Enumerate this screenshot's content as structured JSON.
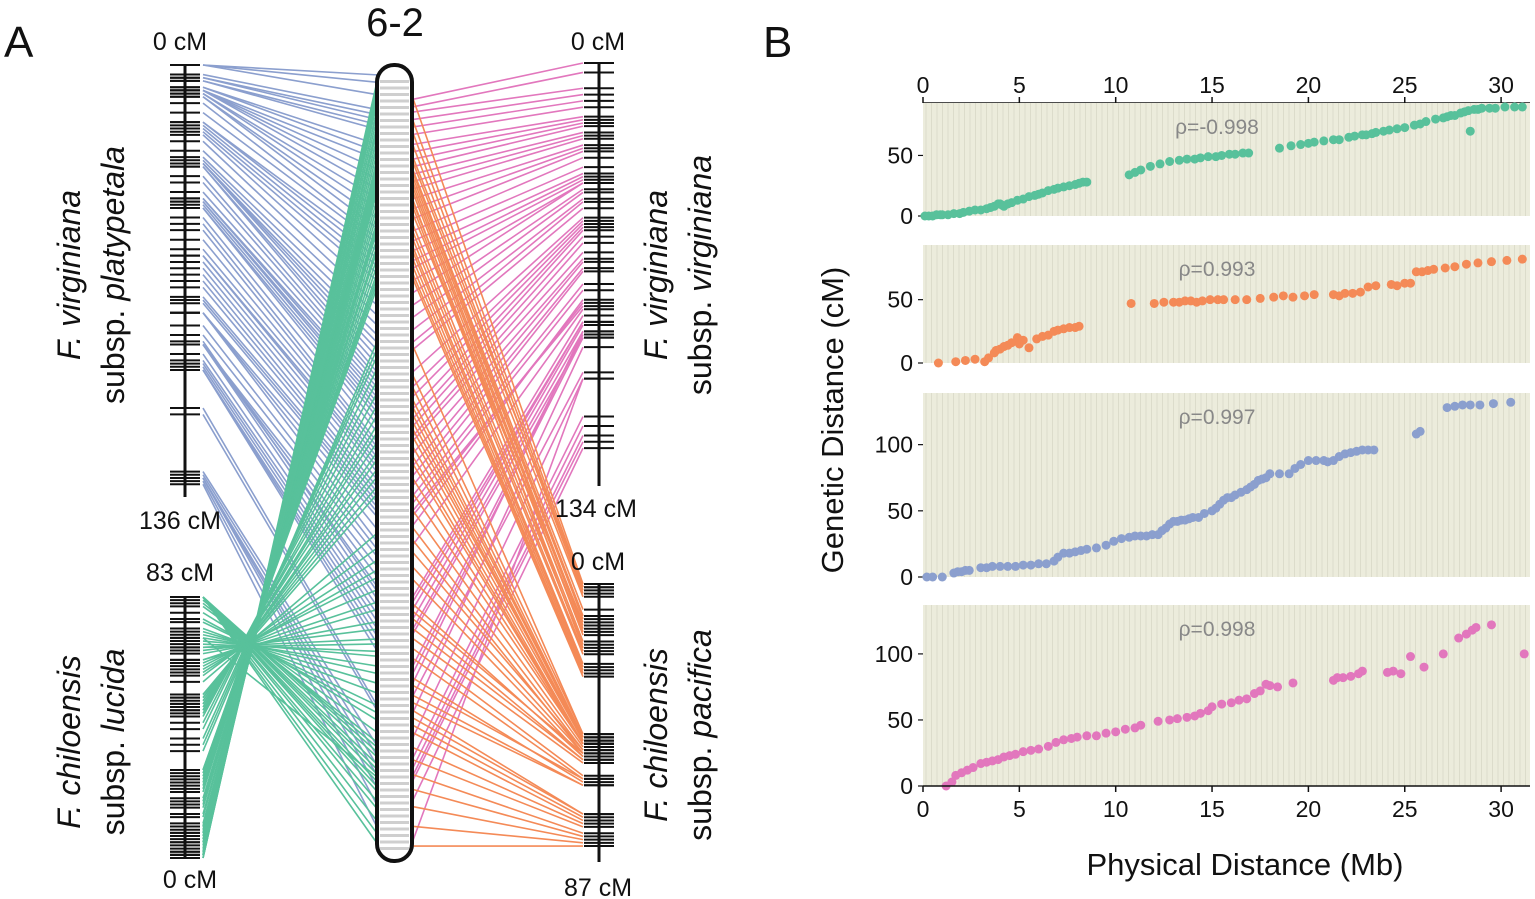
{
  "colors": {
    "platypetala": "#8b9fce",
    "virginiana": "#e277bd",
    "lucida": "#58c19b",
    "pacifica": "#f48a57",
    "panel_bg": "#ececdc",
    "grid": "#dcdccb"
  },
  "panel_a": {
    "letter": "A",
    "chromosome": "6-2",
    "maps": {
      "platypetala": {
        "italic": "F. virginiana",
        "plain": "subsp. ",
        "italic2": "platypetala",
        "top_label": "0 cM",
        "bottom_label": "136 cM"
      },
      "lucida": {
        "italic": "F. chiloensis",
        "plain": "subsp. ",
        "italic2": "lucida",
        "top_label": "83 cM",
        "bottom_label": "0 cM"
      },
      "virginiana": {
        "italic": "F. virginiana",
        "plain": "subsp. ",
        "italic2": "virginiana",
        "top_label": "0 cM",
        "bottom_label": "134 cM"
      },
      "pacifica": {
        "italic": "F. chiloensis",
        "plain": "subsp. ",
        "italic2": "pacifica",
        "top_label": "0 cM",
        "bottom_label": "87 cM"
      }
    }
  },
  "panel_b": {
    "letter": "B"
  },
  "chart_data": {
    "type": "scatter",
    "xlabel": "Physical Distance (Mb)",
    "ylabel": "Genetic Distance (cM)",
    "xlim": [
      0,
      31.5
    ],
    "x_ticks": [
      0,
      5,
      10,
      15,
      20,
      25,
      30
    ],
    "series": [
      {
        "name": "F. chiloensis subsp. lucida",
        "color_key": "lucida",
        "rho": "ρ=-0.998",
        "ylim": [
          0,
          90
        ],
        "y_ticks": [
          0,
          50
        ],
        "x": [
          0.1,
          0.3,
          0.5,
          0.7,
          0.9,
          1.0,
          1.3,
          1.6,
          1.9,
          2.1,
          2.4,
          2.7,
          3.0,
          3.3,
          3.5,
          3.7,
          3.9,
          4.0,
          4.1,
          4.2,
          4.4,
          4.6,
          4.9,
          5.2,
          5.5,
          5.8,
          6.0,
          6.2,
          6.5,
          6.8,
          7.0,
          7.3,
          7.6,
          7.9,
          8.1,
          8.3,
          8.5,
          10.7,
          11.0,
          11.3,
          11.8,
          12.3,
          12.8,
          13.3,
          13.7,
          14.1,
          14.4,
          14.8,
          15.2,
          15.5,
          15.9,
          16.2,
          16.6,
          16.9,
          18.5,
          19.1,
          19.6,
          20.0,
          20.3,
          20.8,
          21.3,
          21.6,
          22.1,
          22.4,
          22.8,
          23.0,
          23.3,
          23.5,
          23.9,
          24.2,
          24.6,
          25.0,
          25.5,
          25.8,
          26.1,
          26.6,
          27.0,
          27.2,
          27.4,
          27.6,
          27.9,
          28.1,
          28.3,
          28.6,
          28.8,
          29.0,
          29.4,
          29.7,
          30.2,
          30.7,
          31.1,
          28.4
        ],
        "y": [
          0,
          0,
          0,
          1,
          1,
          1,
          1,
          2,
          2,
          3,
          4,
          5,
          5,
          6,
          7,
          8,
          10,
          10,
          9,
          8,
          10,
          11,
          13,
          14,
          16,
          17,
          18,
          19,
          21,
          22,
          23,
          24,
          25,
          26,
          27,
          28,
          28,
          34,
          36,
          38,
          41,
          43,
          45,
          46,
          47,
          47,
          48,
          49,
          49,
          50,
          51,
          51,
          52,
          52,
          56,
          58,
          59,
          60,
          61,
          62,
          63,
          63,
          65,
          66,
          67,
          67,
          68,
          69,
          70,
          71,
          72,
          73,
          75,
          76,
          78,
          80,
          81,
          82,
          83,
          83,
          85,
          86,
          87,
          88,
          88,
          89,
          89,
          89,
          90,
          90,
          90,
          70
        ]
      },
      {
        "name": "F. chiloensis subsp. pacifica",
        "color_key": "pacifica",
        "rho": "ρ=0.993",
        "ylim": [
          0,
          90
        ],
        "y_ticks": [
          0,
          50
        ],
        "x": [
          0.8,
          1.7,
          2.2,
          2.7,
          3.2,
          3.4,
          3.7,
          3.8,
          4.0,
          4.2,
          4.4,
          4.6,
          4.9,
          5.0,
          5.2,
          5.5,
          5.9,
          6.2,
          6.5,
          6.8,
          7.0,
          7.3,
          7.6,
          7.9,
          8.1,
          10.8,
          12.0,
          12.5,
          13.0,
          13.3,
          13.6,
          13.9,
          14.2,
          14.5,
          14.9,
          15.3,
          15.6,
          16.2,
          16.8,
          17.5,
          18.2,
          18.7,
          19.2,
          19.8,
          20.3,
          21.3,
          21.6,
          21.9,
          22.3,
          22.7,
          23.1,
          23.5,
          24.3,
          24.6,
          25.0,
          25.3,
          25.6,
          25.9,
          26.2,
          26.5,
          27.1,
          27.6,
          28.2,
          28.8,
          29.5,
          30.3,
          31.1
        ],
        "y": [
          0,
          1,
          2,
          3,
          1,
          4,
          8,
          10,
          11,
          13,
          14,
          16,
          20,
          15,
          18,
          12,
          19,
          21,
          22,
          25,
          26,
          27,
          28,
          28,
          29,
          47,
          47,
          48,
          48,
          48,
          49,
          49,
          48,
          49,
          50,
          50,
          50,
          50,
          50,
          51,
          52,
          53,
          52,
          53,
          54,
          54,
          53,
          55,
          55,
          56,
          60,
          61,
          62,
          61,
          63,
          63,
          72,
          72,
          73,
          74,
          75,
          76,
          78,
          79,
          80,
          81,
          82
        ]
      },
      {
        "name": "F. virginiana subsp. platypetala",
        "color_key": "platypetala",
        "rho": "ρ=0.997",
        "ylim": [
          0,
          136
        ],
        "y_ticks": [
          0,
          50,
          100
        ],
        "x": [
          0.2,
          0.5,
          1.0,
          1.6,
          1.8,
          2.0,
          2.2,
          2.4,
          3.0,
          3.3,
          3.6,
          4.0,
          4.4,
          4.8,
          5.2,
          5.6,
          6.0,
          6.4,
          6.8,
          7.0,
          7.3,
          7.6,
          7.9,
          8.2,
          8.5,
          9.0,
          9.5,
          9.9,
          10.3,
          10.7,
          11.0,
          11.3,
          11.6,
          11.9,
          12.2,
          12.4,
          12.6,
          12.8,
          13.0,
          13.2,
          13.4,
          13.6,
          13.8,
          14.0,
          14.3,
          14.6,
          15.0,
          15.2,
          15.4,
          15.6,
          15.8,
          16.0,
          16.2,
          16.5,
          16.8,
          17.0,
          17.2,
          17.4,
          17.6,
          17.8,
          18.0,
          18.5,
          19.0,
          19.3,
          19.6,
          20.0,
          20.4,
          20.8,
          21.0,
          21.3,
          21.6,
          21.9,
          22.2,
          22.5,
          22.8,
          23.1,
          23.4,
          25.6,
          25.8,
          27.2,
          27.6,
          28.0,
          28.4,
          28.9,
          29.6,
          30.5
        ],
        "y": [
          0,
          0,
          0,
          3,
          4,
          4,
          5,
          5,
          7,
          7,
          8,
          8,
          8,
          8,
          9,
          9,
          10,
          10,
          12,
          15,
          18,
          18,
          19,
          20,
          21,
          22,
          24,
          27,
          29,
          30,
          31,
          31,
          31,
          32,
          32,
          35,
          37,
          40,
          42,
          42,
          43,
          43,
          44,
          45,
          45,
          48,
          50,
          52,
          55,
          58,
          60,
          60,
          62,
          64,
          66,
          68,
          70,
          73,
          74,
          75,
          78,
          78,
          78,
          82,
          85,
          88,
          88,
          88,
          87,
          88,
          91,
          93,
          94,
          95,
          96,
          96,
          96,
          108,
          110,
          128,
          129,
          130,
          130,
          130,
          131,
          132
        ]
      },
      {
        "name": "F. virginiana subsp. virginiana",
        "color_key": "virginiana",
        "rho": "ρ=0.998",
        "ylim": [
          0,
          134
        ],
        "y_ticks": [
          0,
          50,
          100
        ],
        "x": [
          1.2,
          1.5,
          1.7,
          2.0,
          2.3,
          2.6,
          3.0,
          3.3,
          3.6,
          3.9,
          4.2,
          4.5,
          4.8,
          5.2,
          5.6,
          6.0,
          6.5,
          6.9,
          7.3,
          7.7,
          8.0,
          8.5,
          9.0,
          9.5,
          10.0,
          10.5,
          11.0,
          11.3,
          12.2,
          12.8,
          13.2,
          13.7,
          14.1,
          14.4,
          14.8,
          15.0,
          15.5,
          16.0,
          16.4,
          16.8,
          17.2,
          17.5,
          17.8,
          18.0,
          18.4,
          19.2,
          21.3,
          21.5,
          21.8,
          22.2,
          22.6,
          22.8,
          24.1,
          24.4,
          24.8,
          25.3,
          26.0,
          27.0,
          27.8,
          28.2,
          28.5,
          28.7,
          29.5,
          31.2
        ],
        "y": [
          0,
          3,
          8,
          10,
          12,
          14,
          17,
          18,
          19,
          20,
          22,
          23,
          24,
          26,
          27,
          28,
          30,
          33,
          35,
          36,
          37,
          38,
          38,
          40,
          41,
          43,
          44,
          46,
          49,
          50,
          51,
          52,
          53,
          55,
          57,
          60,
          62,
          63,
          65,
          66,
          70,
          72,
          77,
          76,
          75,
          78,
          80,
          82,
          82,
          83,
          85,
          87,
          86,
          87,
          85,
          98,
          90,
          100,
          112,
          115,
          118,
          120,
          122,
          100
        ]
      }
    ]
  }
}
